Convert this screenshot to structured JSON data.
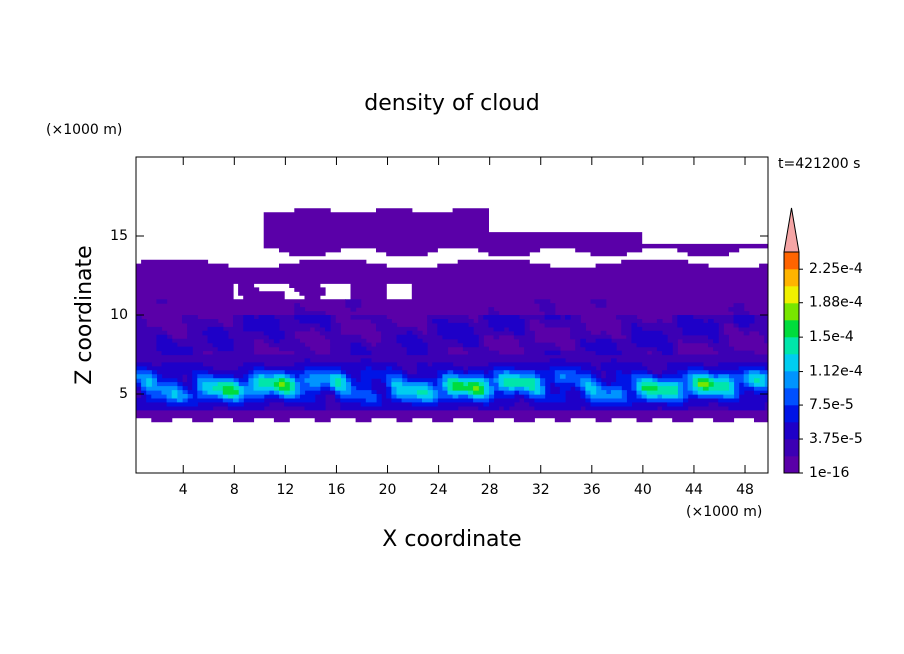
{
  "chart_data": {
    "type": "contour",
    "title": "density of cloud",
    "x_label": "X coordinate",
    "y_label": "Z coordinate",
    "x_unit": "(×1000 m)",
    "y_unit": "(×1000 m)",
    "time_label": "t=421200 s",
    "xlim": [
      0.3,
      49.8
    ],
    "xticks": [
      4,
      8,
      12,
      16,
      20,
      24,
      28,
      32,
      36,
      40,
      44,
      48
    ],
    "ylim": [
      0,
      20
    ],
    "yticks": [
      5,
      10,
      15
    ],
    "colorbar_lim": [
      0,
      0.000244
    ],
    "colorbar_ticks": [
      1e-16,
      {
        "value": 3.75e-05,
        "label": "3.75e-5"
      },
      {
        "value": 7.5e-05,
        "label": "7.5e-5"
      },
      {
        "value": 0.000112,
        "label": "1.12e-4"
      },
      {
        "value": 0.00015,
        "label": "1.5e-4"
      },
      {
        "value": 0.000188,
        "label": "1.88e-4"
      },
      {
        "value": 0.000225,
        "label": "2.25e-4"
      }
    ],
    "colors": [
      "#5a00a8",
      "#3c00b4",
      "#1e00c8",
      "#0014e6",
      "#0050ff",
      "#0094ff",
      "#00cdf0",
      "#00e6aa",
      "#00dc3c",
      "#78e600",
      "#f0f000",
      "#ffb400",
      "#ff6400"
    ],
    "extend_color": "#f5a5a5"
  }
}
